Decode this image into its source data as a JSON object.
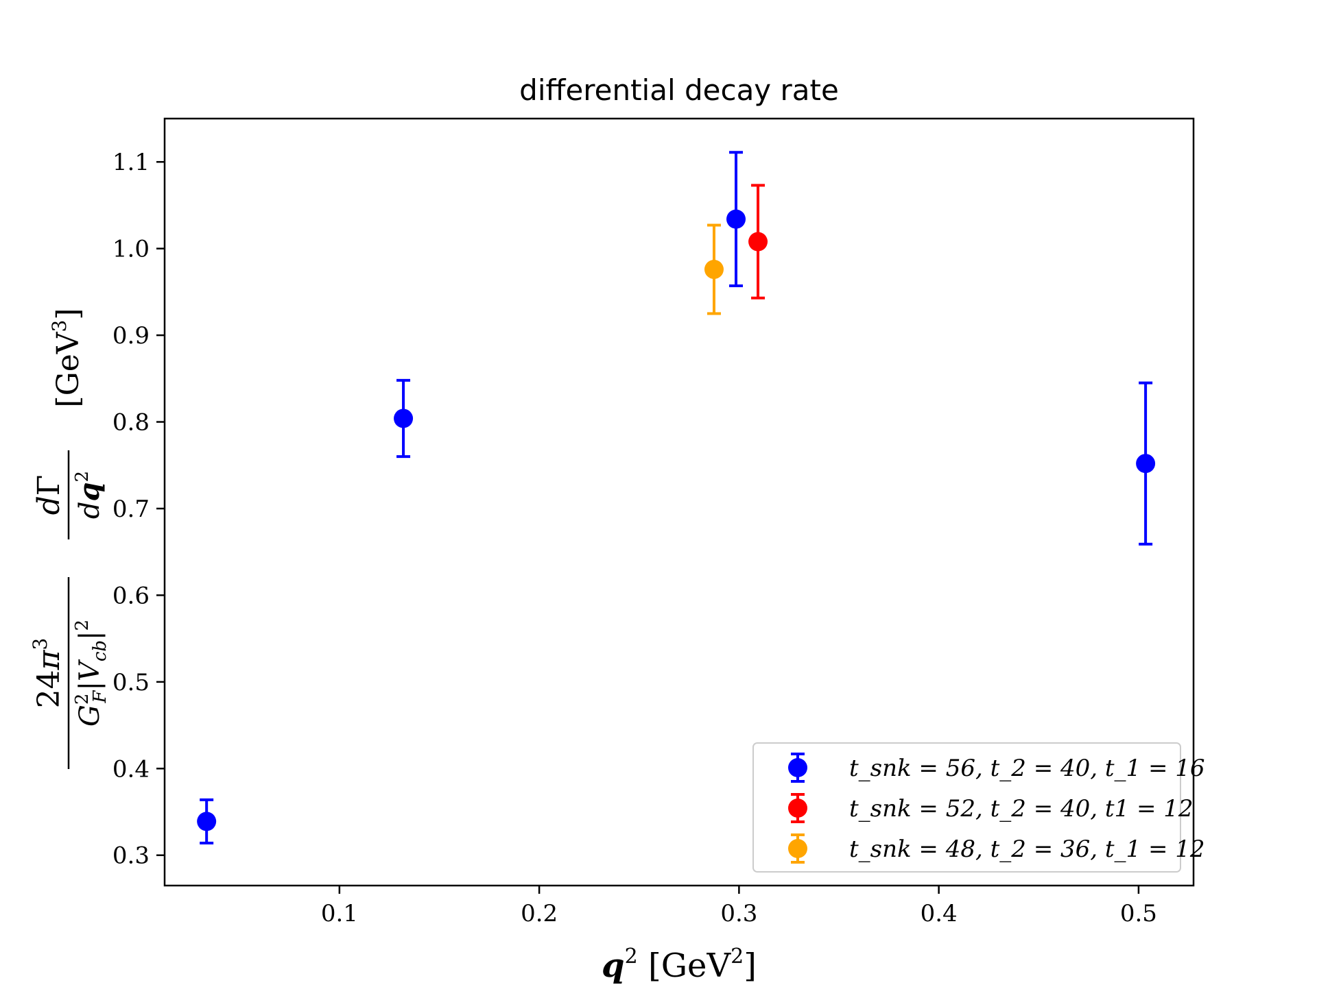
{
  "chart_data": {
    "type": "scatter",
    "title": "differential decay rate",
    "xlabel": "q² [GeV²]",
    "ylabel": "24π³ / (G_F² |V_cb|²) dΓ/dq² [GeV³]",
    "xlim": [
      0.0125,
      0.5275
    ],
    "ylim": [
      0.265,
      1.15
    ],
    "xticks": [
      0.1,
      0.2,
      0.3,
      0.4,
      0.5
    ],
    "yticks": [
      0.3,
      0.4,
      0.5,
      0.6,
      0.7,
      0.8,
      0.9,
      1.0,
      1.1
    ],
    "xtick_labels": [
      "0.1",
      "0.2",
      "0.3",
      "0.4",
      "0.5"
    ],
    "ytick_labels": [
      "0.3",
      "0.4",
      "0.5",
      "0.6",
      "0.7",
      "0.8",
      "0.9",
      "1.0",
      "1.1"
    ],
    "grid": false,
    "legend_position": "lower-right",
    "series": [
      {
        "name": "t_snk = 56, t_2 = 40, t_1 = 16",
        "color": "#0000ff",
        "x": [
          0.0335,
          0.132,
          0.2985,
          0.5035
        ],
        "y": [
          0.339,
          0.804,
          1.034,
          0.752
        ],
        "yerr": [
          0.025,
          0.044,
          0.077,
          0.093
        ]
      },
      {
        "name": "t_snk = 52, t_2 = 40, t1 = 12",
        "color": "#ff0000",
        "x": [
          0.3095
        ],
        "y": [
          1.008
        ],
        "yerr": [
          0.065
        ]
      },
      {
        "name": "t_snk = 48, t_2 = 36, t_1 = 12",
        "color": "#ffa500",
        "x": [
          0.2875
        ],
        "y": [
          0.976
        ],
        "yerr": [
          0.051
        ]
      }
    ]
  }
}
